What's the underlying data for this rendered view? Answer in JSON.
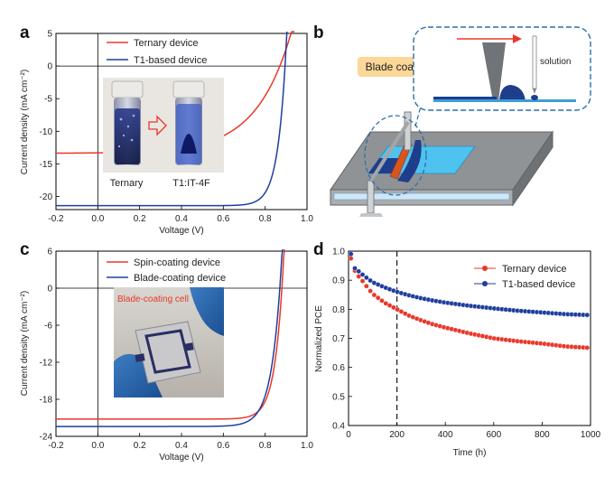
{
  "panels": {
    "a": {
      "letter": "a"
    },
    "b": {
      "letter": "b",
      "blade_label": "Blade coating",
      "solution_label": "solution"
    },
    "c": {
      "letter": "c"
    },
    "d": {
      "letter": "d"
    }
  },
  "chart_data": [
    {
      "panel": "a",
      "type": "line",
      "xlabel": "Voltage (V)",
      "ylabel": "Current density (mA cm⁻²)",
      "xlim": [
        -0.2,
        1.0
      ],
      "ylim": [
        -22,
        5
      ],
      "xticks": [
        -0.2,
        0.0,
        0.2,
        0.4,
        0.6,
        0.8,
        1.0
      ],
      "yticks": [
        5,
        0,
        -5,
        -10,
        -15,
        -20
      ],
      "series": [
        {
          "name": "Ternary device",
          "color": "#e8382a",
          "jsc": -13.3,
          "voc": 0.87,
          "n": 6.5
        },
        {
          "name": "T1-based device",
          "color": "#1f3e9e",
          "jsc": -21.4,
          "voc": 0.895,
          "n": 1.55
        }
      ],
      "inset": {
        "labels": [
          "Ternary",
          "T1:IT-4F"
        ]
      }
    },
    {
      "panel": "c",
      "type": "line",
      "xlabel": "Voltage (V)",
      "ylabel": "Current density (mA cm⁻²)",
      "xlim": [
        -0.2,
        1.0
      ],
      "ylim": [
        -24,
        6
      ],
      "xticks": [
        -0.2,
        0.0,
        0.2,
        0.4,
        0.6,
        0.8,
        1.0
      ],
      "yticks": [
        6,
        0,
        -6,
        -12,
        -18,
        -24
      ],
      "series": [
        {
          "name": "Spin-coating device",
          "color": "#e8382a",
          "jsc": -21.2,
          "voc": 0.88,
          "n": 1.55
        },
        {
          "name": "Blade-coating device",
          "color": "#1f3e9e",
          "jsc": -22.4,
          "voc": 0.87,
          "n": 1.8
        }
      ],
      "inset": {
        "label": "Blade-coating cell"
      }
    },
    {
      "panel": "d",
      "type": "scatter",
      "xlabel": "Time (h)",
      "ylabel": "Normalized PCE",
      "xlim": [
        0,
        1000
      ],
      "ylim": [
        0.4,
        1.0
      ],
      "xticks": [
        0,
        200,
        400,
        600,
        800,
        1000
      ],
      "yticks": [
        0.4,
        0.5,
        0.6,
        0.7,
        0.8,
        0.9,
        1.0
      ],
      "vline_x": 200,
      "series": [
        {
          "name": "Ternary device",
          "color": "#e8382a",
          "t": [
            10,
            20,
            40,
            60,
            80,
            100,
            150,
            200,
            250,
            300,
            350,
            400,
            500,
            600,
            700,
            800,
            900,
            1000
          ],
          "pce": [
            0.975,
            0.94,
            0.915,
            0.895,
            0.873,
            0.853,
            0.822,
            0.8,
            0.778,
            0.762,
            0.748,
            0.737,
            0.717,
            0.7,
            0.69,
            0.682,
            0.672,
            0.667
          ]
        },
        {
          "name": "T1-based device",
          "color": "#1f3e9e",
          "t": [
            10,
            20,
            40,
            60,
            80,
            100,
            150,
            200,
            250,
            300,
            350,
            400,
            500,
            600,
            700,
            800,
            900,
            1000
          ],
          "pce": [
            0.99,
            0.945,
            0.932,
            0.918,
            0.905,
            0.893,
            0.875,
            0.86,
            0.848,
            0.838,
            0.83,
            0.823,
            0.812,
            0.803,
            0.795,
            0.789,
            0.783,
            0.78
          ]
        }
      ]
    }
  ]
}
